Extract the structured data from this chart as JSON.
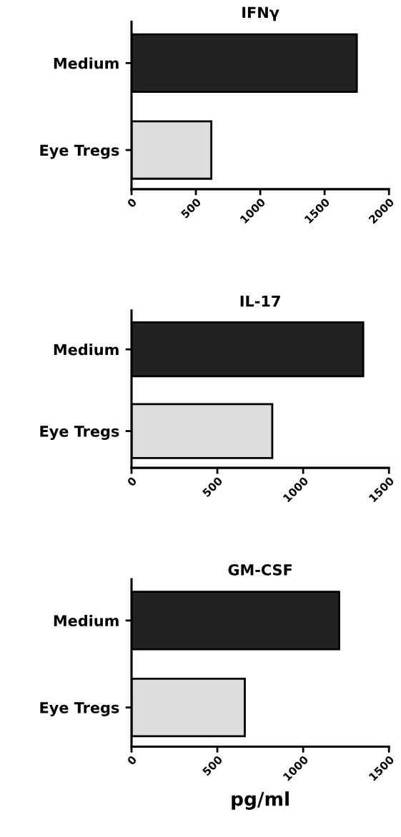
{
  "chart_data": [
    {
      "type": "bar",
      "orientation": "horizontal",
      "title": "IFNγ",
      "categories": [
        "Medium",
        "Eye Tregs"
      ],
      "values": [
        1750,
        620
      ],
      "colors": [
        "#222222",
        "#dcdcdc"
      ],
      "xlim": [
        0,
        2000
      ],
      "xticks": [
        0,
        500,
        1000,
        1500,
        2000
      ],
      "grid": false,
      "legend": false
    },
    {
      "type": "bar",
      "orientation": "horizontal",
      "title": "IL-17",
      "categories": [
        "Medium",
        "Eye Tregs"
      ],
      "values": [
        1350,
        820
      ],
      "colors": [
        "#222222",
        "#dcdcdc"
      ],
      "xlim": [
        0,
        1500
      ],
      "xticks": [
        0,
        500,
        1000,
        1500
      ],
      "grid": false,
      "legend": false
    },
    {
      "type": "bar",
      "orientation": "horizontal",
      "title": "GM-CSF",
      "xlabel": "pg/ml",
      "categories": [
        "Medium",
        "Eye Tregs"
      ],
      "values": [
        1210,
        660
      ],
      "colors": [
        "#222222",
        "#dcdcdc"
      ],
      "xlim": [
        0,
        1500
      ],
      "xticks": [
        0,
        500,
        1000,
        1500
      ],
      "grid": false,
      "legend": false
    }
  ]
}
